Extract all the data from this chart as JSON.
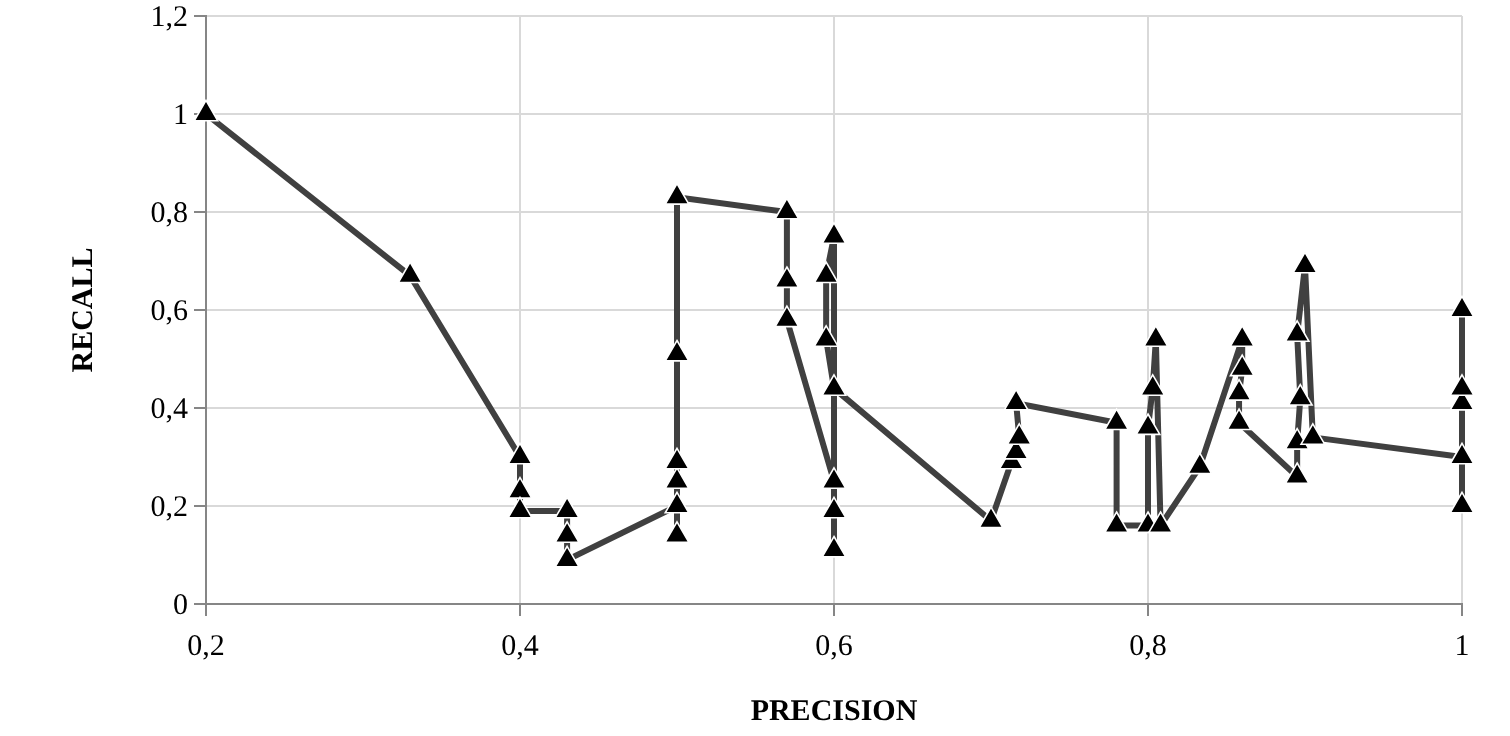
{
  "chart_data": {
    "type": "line",
    "xlabel": "PRECISION",
    "ylabel": "RECALL",
    "marker": "triangle",
    "line_style": "solid",
    "grid": true,
    "xlim": [
      0.2,
      1
    ],
    "xticks": [
      {
        "value": 0.2,
        "label": "0,2"
      },
      {
        "value": 0.4,
        "label": "0,4"
      },
      {
        "value": 0.6,
        "label": "0,6"
      },
      {
        "value": 0.8,
        "label": "0,8"
      },
      {
        "value": 1,
        "label": "1"
      }
    ],
    "ylim": [
      0,
      1.2
    ],
    "yticks": [
      {
        "value": 0,
        "label": "0"
      },
      {
        "value": 0.2,
        "label": "0,2"
      },
      {
        "value": 0.4,
        "label": "0,4"
      },
      {
        "value": 0.6,
        "label": "0,6"
      },
      {
        "value": 0.8,
        "label": "0,8"
      },
      {
        "value": 1,
        "label": "1"
      },
      {
        "value": 1.2,
        "label": "1,2"
      }
    ],
    "series": [
      {
        "color": "#404040",
        "x": [
          0.2,
          0.33,
          0.4,
          0.4,
          0.4,
          0.43,
          0.43,
          0.43,
          0.5,
          0.5,
          0.5,
          0.5,
          0.5,
          0.5,
          0.57,
          0.57,
          0.57,
          0.6,
          0.6,
          0.6,
          0.6,
          0.595,
          0.595,
          0.6,
          0.7,
          0.713,
          0.716,
          0.718,
          0.716,
          0.78,
          0.78,
          0.8,
          0.8,
          0.803,
          0.805,
          0.808,
          0.833,
          0.86,
          0.86,
          0.858,
          0.858,
          0.895,
          0.895,
          0.897,
          0.895,
          0.9,
          0.905,
          1,
          1,
          1,
          1,
          1
        ],
        "values": [
          1,
          0.67,
          0.3,
          0.23,
          0.19,
          0.19,
          0.14,
          0.09,
          0.2,
          0.14,
          0.25,
          0.29,
          0.51,
          0.83,
          0.8,
          0.66,
          0.58,
          0.25,
          0.19,
          0.11,
          0.75,
          0.67,
          0.54,
          0.44,
          0.17,
          0.29,
          0.31,
          0.34,
          0.41,
          0.37,
          0.16,
          0.16,
          0.36,
          0.44,
          0.54,
          0.16,
          0.28,
          0.54,
          0.48,
          0.43,
          0.37,
          0.26,
          0.33,
          0.42,
          0.55,
          0.69,
          0.34,
          0.3,
          0.2,
          0.41,
          0.44,
          0.6
        ]
      }
    ]
  }
}
